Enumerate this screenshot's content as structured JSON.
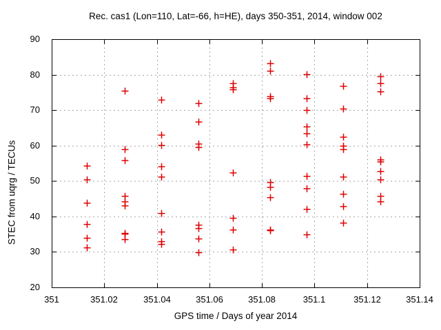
{
  "chart_data": {
    "type": "scatter",
    "title": "Rec. cas1 (Lon=110, Lat=-66, h=HE), days 350-351, 2014, window 002",
    "xlabel": "GPS time / Days of year 2014",
    "ylabel": "STEC from uqrg / TECUs",
    "xlim": [
      351,
      351.14
    ],
    "ylim": [
      20,
      90
    ],
    "xticks": {
      "values": [
        351,
        351.02,
        351.04,
        351.06,
        351.08,
        351.1,
        351.12,
        351.14
      ],
      "labels": [
        "351",
        "351.02",
        "351.04",
        "351.06",
        "351.08",
        "351.1",
        "351.12",
        "351.14"
      ]
    },
    "yticks": {
      "values": [
        20,
        30,
        40,
        50,
        60,
        70,
        80,
        90
      ],
      "labels": [
        "20",
        "30",
        "40",
        "50",
        "60",
        "70",
        "80",
        "90"
      ]
    },
    "grid": true,
    "legend_position": "none",
    "marker": {
      "shape": "plus",
      "color": "#dd0000",
      "size": 11
    },
    "colors": {
      "axis": "#000000",
      "grid": "#a6a6a6",
      "background": "#ffffff",
      "text": "#000000"
    },
    "series": [
      {
        "name": "stec-uqrg",
        "points": [
          [
            351.0135,
            54.4
          ],
          [
            351.0135,
            50.5
          ],
          [
            351.0135,
            43.8
          ],
          [
            351.0135,
            37.8
          ],
          [
            351.0135,
            34.0
          ],
          [
            351.0135,
            31.2
          ],
          [
            351.0278,
            75.5
          ],
          [
            351.0278,
            59.0
          ],
          [
            351.0278,
            55.9
          ],
          [
            351.0278,
            45.7
          ],
          [
            351.0278,
            44.3
          ],
          [
            351.0278,
            43.0
          ],
          [
            351.0278,
            35.4
          ],
          [
            351.0278,
            35.1
          ],
          [
            351.0278,
            33.6
          ],
          [
            351.0418,
            72.9
          ],
          [
            351.0418,
            63.0
          ],
          [
            351.0418,
            60.2
          ],
          [
            351.0418,
            54.1
          ],
          [
            351.0418,
            51.2
          ],
          [
            351.0418,
            41.0
          ],
          [
            351.0418,
            35.8
          ],
          [
            351.0418,
            33.0
          ],
          [
            351.0418,
            32.2
          ],
          [
            351.0559,
            72.0
          ],
          [
            351.0559,
            66.8
          ],
          [
            351.0559,
            60.5
          ],
          [
            351.0559,
            59.6
          ],
          [
            351.0559,
            37.6
          ],
          [
            351.0559,
            36.7
          ],
          [
            351.0559,
            33.7
          ],
          [
            351.0559,
            29.8
          ],
          [
            351.0689,
            77.6
          ],
          [
            351.0689,
            76.4
          ],
          [
            351.0689,
            75.8
          ],
          [
            351.0689,
            52.4
          ],
          [
            351.0689,
            39.6
          ],
          [
            351.0689,
            36.3
          ],
          [
            351.0689,
            30.7
          ],
          [
            351.083,
            83.2
          ],
          [
            351.083,
            81.1
          ],
          [
            351.083,
            74.0
          ],
          [
            351.083,
            73.4
          ],
          [
            351.083,
            49.7
          ],
          [
            351.083,
            48.4
          ],
          [
            351.083,
            45.4
          ],
          [
            351.083,
            36.3
          ],
          [
            351.083,
            36.1
          ],
          [
            351.097,
            80.2
          ],
          [
            351.097,
            73.4
          ],
          [
            351.097,
            70.0
          ],
          [
            351.097,
            65.3
          ],
          [
            351.097,
            63.4
          ],
          [
            351.097,
            60.3
          ],
          [
            351.097,
            51.4
          ],
          [
            351.097,
            47.9
          ],
          [
            351.097,
            42.2
          ],
          [
            351.097,
            34.9
          ],
          [
            351.111,
            76.9
          ],
          [
            351.111,
            70.5
          ],
          [
            351.111,
            62.4
          ],
          [
            351.111,
            59.9
          ],
          [
            351.111,
            59.0
          ],
          [
            351.111,
            51.2
          ],
          [
            351.111,
            46.4
          ],
          [
            351.111,
            42.9
          ],
          [
            351.111,
            38.2
          ],
          [
            351.1251,
            79.5
          ],
          [
            351.1251,
            77.6
          ],
          [
            351.1251,
            75.2
          ],
          [
            351.1251,
            56.1
          ],
          [
            351.1251,
            55.4
          ],
          [
            351.1251,
            52.8
          ],
          [
            351.1251,
            50.4
          ],
          [
            351.1251,
            45.8
          ],
          [
            351.1251,
            44.2
          ]
        ]
      }
    ]
  }
}
